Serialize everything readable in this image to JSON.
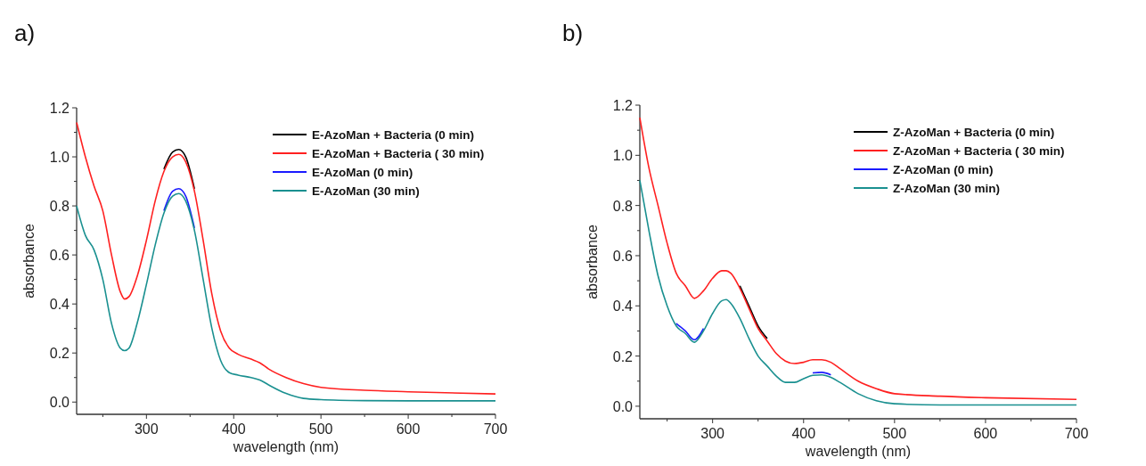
{
  "chart_data": [
    {
      "type": "line",
      "title": "a)",
      "xlabel": "wavelength (nm)",
      "ylabel": "absorbance",
      "x": [
        220,
        230,
        240,
        250,
        260,
        270,
        275,
        280,
        290,
        300,
        310,
        320,
        330,
        337,
        345,
        355,
        365,
        375,
        385,
        395,
        405,
        420,
        430,
        440,
        460,
        480,
        500,
        550,
        600,
        700
      ],
      "series": [
        {
          "name": "E-AzoMan + Bacteria (0 min)",
          "color": "#000000",
          "values": [
            null,
            null,
            null,
            null,
            null,
            null,
            null,
            null,
            null,
            null,
            null,
            0.95,
            1.02,
            1.03,
            1.0,
            0.87,
            null,
            null,
            null,
            null,
            null,
            null,
            null,
            null,
            null,
            null,
            null,
            null,
            null,
            null
          ]
        },
        {
          "name": "E-AzoMan + Bacteria ( 30 min)",
          "color": "#ff2020",
          "values": [
            1.14,
            1.0,
            0.88,
            0.78,
            0.6,
            0.45,
            0.42,
            0.43,
            0.52,
            0.66,
            0.82,
            0.94,
            1.0,
            1.01,
            0.98,
            0.86,
            0.66,
            0.44,
            0.29,
            0.22,
            0.195,
            0.175,
            0.16,
            0.135,
            0.1,
            0.075,
            0.06,
            0.048,
            0.042,
            0.033
          ]
        },
        {
          "name": "E-AzoMan (0 min)",
          "color": "#1a1aff",
          "values": [
            null,
            null,
            null,
            null,
            null,
            null,
            null,
            null,
            null,
            null,
            null,
            0.78,
            0.86,
            0.87,
            0.84,
            0.71,
            null,
            null,
            null,
            null,
            null,
            null,
            null,
            null,
            null,
            null,
            null,
            null,
            null,
            null
          ]
        },
        {
          "name": "E-AzoMan (30 min)",
          "color": "#1a9090",
          "values": [
            0.8,
            0.68,
            0.62,
            0.5,
            0.32,
            0.22,
            0.21,
            0.22,
            0.33,
            0.48,
            0.64,
            0.77,
            0.84,
            0.85,
            0.82,
            0.7,
            0.5,
            0.3,
            0.17,
            0.12,
            0.11,
            0.1,
            0.09,
            0.07,
            0.035,
            0.015,
            0.01,
            0.006,
            0.005,
            0.005
          ]
        }
      ],
      "xlim": [
        220,
        700
      ],
      "ylim": [
        -0.05,
        1.2
      ],
      "xticks": [
        {
          "value": 250,
          "label": null
        },
        300,
        {
          "value": 350,
          "label": null
        },
        400,
        {
          "value": 450,
          "label": null
        },
        500,
        {
          "value": 550,
          "label": null
        },
        600,
        {
          "value": 650,
          "label": null
        },
        700
      ],
      "yticks": [
        {
          "value": 0,
          "label": "0.0"
        },
        {
          "value": 0.1,
          "label": null
        },
        0.2,
        {
          "value": 0.3,
          "label": null
        },
        0.4,
        {
          "value": 0.5,
          "label": null
        },
        0.6,
        {
          "value": 0.7,
          "label": null
        },
        0.8,
        {
          "value": 0.9,
          "label": null
        },
        {
          "value": 1,
          "label": "1.0"
        },
        {
          "value": 1.1,
          "label": null
        },
        1.2
      ],
      "grid": false,
      "legend": "top right",
      "marker": "none",
      "line_style": "solid"
    },
    {
      "type": "line",
      "title": "b)",
      "xlabel": "wavelength (nm)",
      "ylabel": "absorbance",
      "x": [
        220,
        230,
        240,
        250,
        260,
        270,
        280,
        290,
        300,
        310,
        315,
        320,
        330,
        340,
        350,
        360,
        370,
        380,
        390,
        400,
        410,
        420,
        430,
        440,
        460,
        480,
        500,
        550,
        600,
        700
      ],
      "series": [
        {
          "name": "Z-AzoMan + Bacteria (0 min)",
          "color": "#000000",
          "values": [
            null,
            null,
            null,
            null,
            null,
            null,
            null,
            null,
            null,
            null,
            null,
            null,
            0.48,
            0.4,
            0.32,
            0.27,
            null,
            null,
            null,
            null,
            null,
            null,
            null,
            null,
            null,
            null,
            null,
            null,
            null,
            null
          ]
        },
        {
          "name": "Z-AzoMan + Bacteria ( 30 min)",
          "color": "#ff2020",
          "values": [
            1.15,
            0.95,
            0.8,
            0.65,
            0.53,
            0.48,
            0.43,
            0.46,
            0.51,
            0.54,
            0.54,
            0.53,
            0.47,
            0.39,
            0.31,
            0.26,
            0.21,
            0.18,
            0.17,
            0.175,
            0.185,
            0.185,
            0.175,
            0.15,
            0.1,
            0.07,
            0.05,
            0.04,
            0.034,
            0.027
          ]
        },
        {
          "name": "Z-AzoMan (0 min)",
          "color": "#1a1aff",
          "values": [
            null,
            null,
            null,
            null,
            0.33,
            0.3,
            0.265,
            0.31,
            null,
            null,
            null,
            null,
            null,
            null,
            null,
            null,
            null,
            null,
            null,
            null,
            0.133,
            0.135,
            0.125,
            null,
            null,
            null,
            null,
            null,
            null,
            null
          ]
        },
        {
          "name": "Z-AzoMan (30 min)",
          "color": "#1a9090",
          "values": [
            0.9,
            0.7,
            0.52,
            0.4,
            0.32,
            0.29,
            0.255,
            0.3,
            0.37,
            0.42,
            0.425,
            0.41,
            0.35,
            0.27,
            0.2,
            0.16,
            0.12,
            0.095,
            0.095,
            0.11,
            0.123,
            0.125,
            0.115,
            0.095,
            0.05,
            0.022,
            0.01,
            0.005,
            0.005,
            0.005
          ]
        }
      ],
      "xlim": [
        220,
        700
      ],
      "ylim": [
        -0.05,
        1.2
      ],
      "xticks": [
        {
          "value": 250,
          "label": null
        },
        300,
        {
          "value": 350,
          "label": null
        },
        400,
        {
          "value": 450,
          "label": null
        },
        500,
        {
          "value": 550,
          "label": null
        },
        600,
        {
          "value": 650,
          "label": null
        },
        700
      ],
      "yticks": [
        {
          "value": 0,
          "label": "0.0"
        },
        {
          "value": 0.1,
          "label": null
        },
        0.2,
        {
          "value": 0.3,
          "label": null
        },
        0.4,
        {
          "value": 0.5,
          "label": null
        },
        0.6,
        {
          "value": 0.7,
          "label": null
        },
        0.8,
        {
          "value": 0.9,
          "label": null
        },
        {
          "value": 1,
          "label": "1.0"
        },
        {
          "value": 1.1,
          "label": null
        },
        1.2
      ],
      "grid": false,
      "legend": "top right",
      "marker": "none",
      "line_style": "solid"
    }
  ]
}
